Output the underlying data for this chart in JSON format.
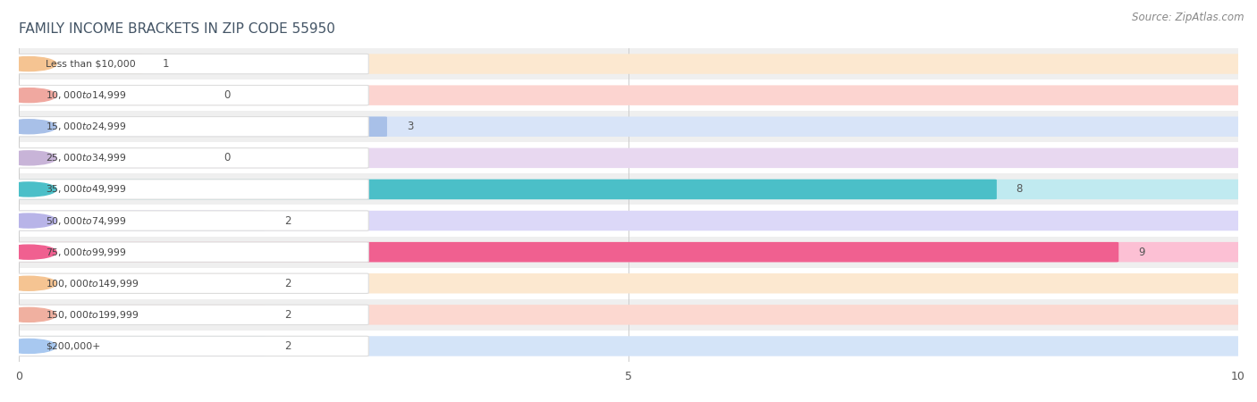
{
  "title": "FAMILY INCOME BRACKETS IN ZIP CODE 55950",
  "source": "Source: ZipAtlas.com",
  "categories": [
    "Less than $10,000",
    "$10,000 to $14,999",
    "$15,000 to $24,999",
    "$25,000 to $34,999",
    "$35,000 to $49,999",
    "$50,000 to $74,999",
    "$75,000 to $99,999",
    "$100,000 to $149,999",
    "$150,000 to $199,999",
    "$200,000+"
  ],
  "values": [
    1,
    0,
    3,
    0,
    8,
    2,
    9,
    2,
    2,
    2
  ],
  "bar_colors": [
    "#f5c492",
    "#f0a8a0",
    "#a8c0e8",
    "#c8b4d8",
    "#4bbfc8",
    "#b8b4e8",
    "#f06090",
    "#f5c492",
    "#f0b0a0",
    "#a8c8f0"
  ],
  "bar_bg_colors": [
    "#fce8d0",
    "#fcd4d0",
    "#d8e4f8",
    "#e8d8f0",
    "#c0eaf0",
    "#dcd8f8",
    "#fcc0d4",
    "#fce8d0",
    "#fcd8d0",
    "#d4e4f8"
  ],
  "row_colors": [
    "#efefef",
    "#ffffff"
  ],
  "xlim": [
    0,
    10
  ],
  "xticks": [
    0,
    5,
    10
  ],
  "title_fontsize": 11,
  "source_fontsize": 8.5,
  "bar_height": 0.6,
  "value_color": "#555555"
}
